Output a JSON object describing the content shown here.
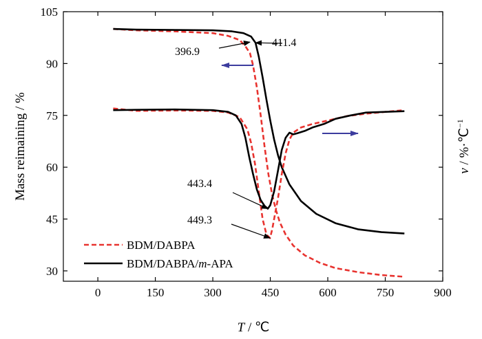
{
  "chart_data": {
    "type": "line",
    "title": "",
    "xlabel_var": "T",
    "xlabel_unit": " / ℃",
    "ylabel": "Mass reimaining / %",
    "y2label_var": "v",
    "y2label_unit": " / %·℃",
    "y2label_sup": "−1",
    "xlim": [
      -90,
      900
    ],
    "ylim": [
      27,
      105
    ],
    "x_ticks": [
      0,
      150,
      300,
      450,
      600,
      750,
      900
    ],
    "y_ticks": [
      30,
      45,
      60,
      75,
      90,
      105
    ],
    "grid": false,
    "legend_position": "bottom-left",
    "colors": {
      "dabpa": "#e8332f",
      "mapa": "#000000",
      "arrow": "#3c3c9e"
    },
    "series": [
      {
        "name": "BDM/DABPA",
        "role": "mass",
        "style": "dashed",
        "x": [
          40,
          100,
          200,
          300,
          340,
          370,
          385,
          396.9,
          405,
          415,
          425,
          435,
          445,
          455,
          465,
          475,
          490,
          510,
          540,
          580,
          620,
          680,
          740,
          800
        ],
        "y": [
          100,
          99.6,
          99.3,
          98.8,
          98.0,
          96.8,
          95.0,
          93.0,
          89.5,
          83.0,
          75.0,
          66.0,
          58.0,
          52.0,
          47.5,
          44.0,
          40.5,
          37.3,
          34.5,
          32.3,
          30.8,
          29.6,
          28.8,
          28.3
        ]
      },
      {
        "name": "BDM/DABPA/m-APA",
        "role": "mass",
        "style": "solid",
        "x": [
          40,
          100,
          200,
          300,
          350,
          380,
          400,
          411.4,
          420,
          430,
          440,
          450,
          460,
          470,
          480,
          500,
          530,
          570,
          620,
          680,
          740,
          800
        ],
        "y": [
          100,
          99.8,
          99.7,
          99.6,
          99.3,
          98.8,
          97.8,
          96.0,
          92.0,
          86.0,
          79.5,
          73.5,
          68.0,
          63.5,
          60.0,
          55.0,
          50.2,
          46.5,
          43.8,
          42.0,
          41.2,
          40.8
        ]
      },
      {
        "name": "BDM/DABPA",
        "role": "rate",
        "style": "dashed",
        "x": [
          40,
          100,
          200,
          300,
          340,
          370,
          390,
          400,
          410,
          420,
          430,
          440,
          449.3,
          455,
          460,
          470,
          480,
          490,
          500,
          510,
          530,
          560,
          600,
          650,
          700,
          750,
          800
        ],
        "y": [
          77,
          76.3,
          76.4,
          76.3,
          75.8,
          74.5,
          71.0,
          67.0,
          61.0,
          53.0,
          45.0,
          40.5,
          39.5,
          42.0,
          45.0,
          51.0,
          58.0,
          64.0,
          68.0,
          70.0,
          71.5,
          72.5,
          73.5,
          74.8,
          75.5,
          76.0,
          76.5
        ]
      },
      {
        "name": "BDM/DABPA/m-APA",
        "role": "rate",
        "style": "solid",
        "x": [
          40,
          100,
          200,
          300,
          340,
          360,
          375,
          385,
          395,
          405,
          415,
          425,
          435,
          443.4,
          450,
          460,
          470,
          480,
          490,
          500,
          510,
          520,
          540,
          560,
          590,
          620,
          660,
          700,
          750,
          800
        ],
        "y": [
          76.5,
          76.6,
          76.7,
          76.5,
          76.0,
          75.0,
          72.5,
          68.5,
          63.0,
          58.0,
          53.5,
          50.5,
          48.8,
          48.0,
          49.0,
          53.0,
          59.0,
          65.0,
          68.5,
          70.0,
          69.5,
          69.8,
          70.5,
          71.5,
          72.5,
          74.0,
          75.0,
          75.8,
          76.0,
          76.2
        ]
      }
    ],
    "annotations": [
      {
        "label": "411.4",
        "x": 411.4,
        "y": 96.0
      },
      {
        "label": "396.9",
        "x": 396.9,
        "y": 96.2
      },
      {
        "label": "443.4",
        "x": 443.4,
        "y": 48.0
      },
      {
        "label": "449.3",
        "x": 449.3,
        "y": 39.5
      }
    ],
    "legend": {
      "entries": [
        {
          "label": "BDM/DABPA",
          "style": "dashed"
        },
        {
          "label_prefix": "BDM/DABPA/",
          "label_italic": "m",
          "label_suffix": "-APA",
          "style": "solid"
        }
      ]
    }
  }
}
